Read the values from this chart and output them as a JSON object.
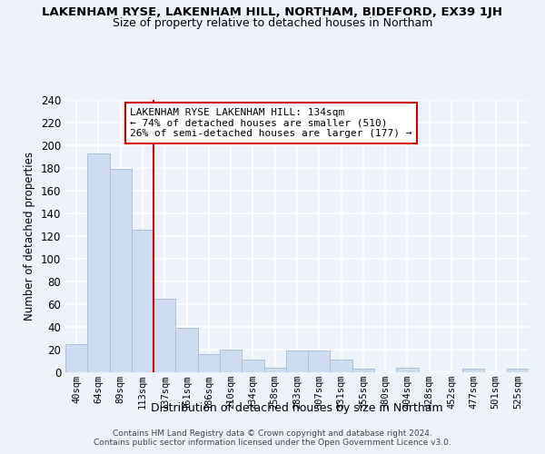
{
  "title": "LAKENHAM RYSE, LAKENHAM HILL, NORTHAM, BIDEFORD, EX39 1JH",
  "subtitle": "Size of property relative to detached houses in Northam",
  "xlabel": "Distribution of detached houses by size in Northam",
  "ylabel": "Number of detached properties",
  "bin_labels": [
    "40sqm",
    "64sqm",
    "89sqm",
    "113sqm",
    "137sqm",
    "161sqm",
    "186sqm",
    "210sqm",
    "234sqm",
    "258sqm",
    "283sqm",
    "307sqm",
    "331sqm",
    "355sqm",
    "380sqm",
    "404sqm",
    "428sqm",
    "452sqm",
    "477sqm",
    "501sqm",
    "525sqm"
  ],
  "bar_heights": [
    25,
    193,
    179,
    126,
    65,
    39,
    16,
    20,
    11,
    4,
    19,
    19,
    11,
    3,
    0,
    4,
    0,
    0,
    3,
    0,
    3
  ],
  "bar_color": "#cddcf0",
  "bar_edge_color": "#aabfdc",
  "marker_line_color": "#cc0000",
  "annotation_line1": "LAKENHAM RYSE LAKENHAM HILL: 134sqm",
  "annotation_line2": "← 74% of detached houses are smaller (510)",
  "annotation_line3": "26% of semi-detached houses are larger (177) →",
  "ylim": [
    0,
    240
  ],
  "yticks": [
    0,
    20,
    40,
    60,
    80,
    100,
    120,
    140,
    160,
    180,
    200,
    220,
    240
  ],
  "footer_line1": "Contains HM Land Registry data © Crown copyright and database right 2024.",
  "footer_line2": "Contains public sector information licensed under the Open Government Licence v3.0.",
  "bg_color": "#eef2fb",
  "grid_color": "#d8e0ef"
}
